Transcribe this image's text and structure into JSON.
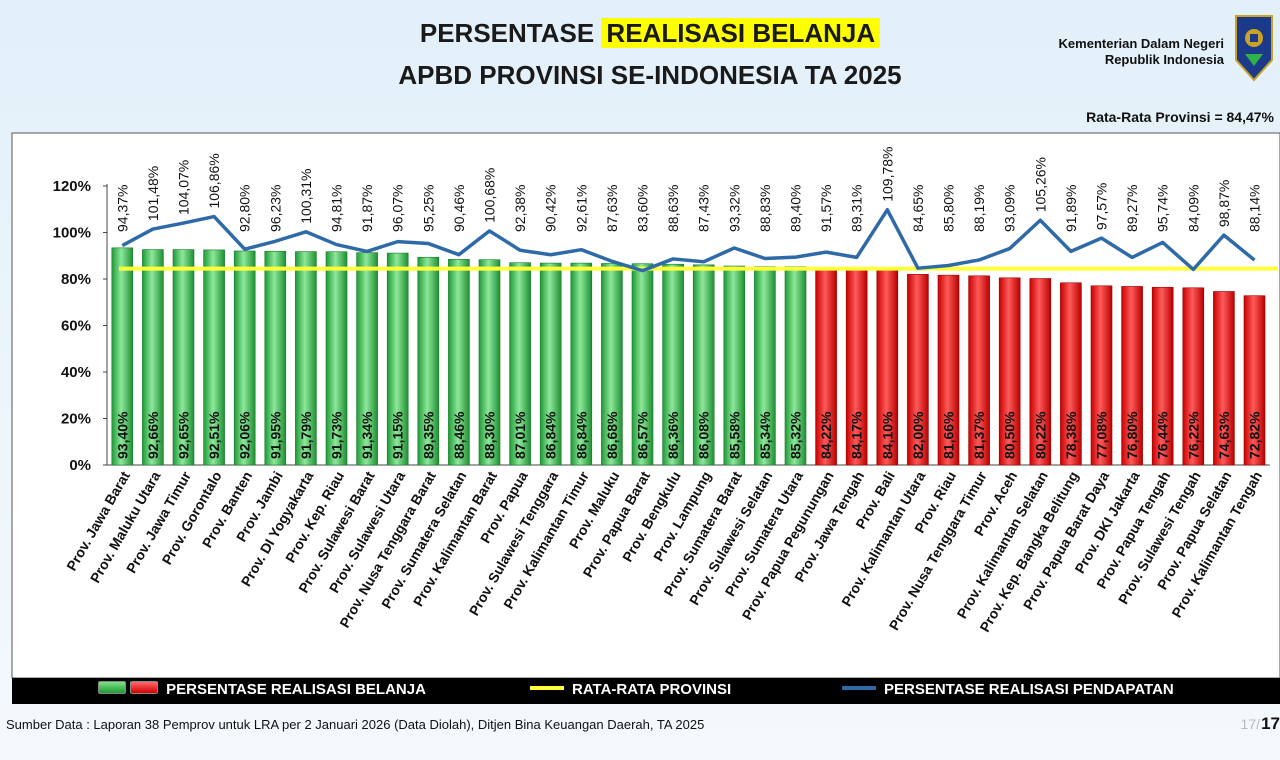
{
  "header": {
    "title_pre": "PERSENTASE ",
    "title_highlight": "REALISASI BELANJA",
    "title_line2": "APBD PROVINSI SE-INDONESIA TA 2025",
    "ministry_line1": "Kementerian Dalam Negeri",
    "ministry_line2": "Republik Indonesia",
    "average_text": "Rata-Rata Provinsi = 84,47%"
  },
  "legend": {
    "belanja": "PERSENTASE REALISASI BELANJA",
    "rata": "RATA-RATA PROVINSI",
    "pendapatan": "PERSENTASE REALISASI PENDAPATAN"
  },
  "footer": {
    "source": "Sumber Data : Laporan 38 Pemprov untuk LRA per 2 Januari 2026 (Data Diolah), Ditjen Bina Keuangan Daerah, TA 2025",
    "page_number": "17",
    "page_ghost": "17/"
  },
  "colors": {
    "above_average": "#2fb347",
    "below_average": "#e60000",
    "average_line": "#ffff3a",
    "pendapatan_line": "#2e6aa8"
  },
  "chart_data": {
    "type": "bar",
    "ylim": [
      0,
      120
    ],
    "yticks": [
      "0%",
      "20%",
      "40%",
      "60%",
      "80%",
      "100%",
      "120%"
    ],
    "average": 84.47,
    "categories": [
      "Prov. Jawa Barat",
      "Prov. Maluku Utara",
      "Prov. Jawa Timur",
      "Prov. Gorontalo",
      "Prov. Banten",
      "Prov. Jambi",
      "Prov. DI Yogyakarta",
      "Prov. Kep. Riau",
      "Prov. Sulawesi Barat",
      "Prov. Sulawesi Utara",
      "Prov. Nusa Tenggara Barat",
      "Prov. Sumatera Selatan",
      "Prov. Kalimantan Barat",
      "Prov. Papua",
      "Prov. Sulawesi Tenggara",
      "Prov. Kalimantan Timur",
      "Prov. Maluku",
      "Prov. Papua Barat",
      "Prov. Bengkulu",
      "Prov. Lampung",
      "Prov. Sumatera Barat",
      "Prov. Sulawesi Selatan",
      "Prov. Sumatera Utara",
      "Prov. Papua Pegunungan",
      "Prov. Jawa Tengah",
      "Prov. Bali",
      "Prov. Kalimantan Utara",
      "Prov. Riau",
      "Prov. Nusa Tenggara Timur",
      "Prov. Aceh",
      "Prov. Kalimantan Selatan",
      "Prov. Kep. Bangka Belitung",
      "Prov. Papua Barat Daya",
      "Prov. DKI Jakarta",
      "Prov. Papua Tengah",
      "Prov. Sulawesi Tengah",
      "Prov. Papua Selatan",
      "Prov. Kalimantan Tengah"
    ],
    "series": [
      {
        "name": "PERSENTASE REALISASI BELANJA",
        "values": [
          93.4,
          92.66,
          92.65,
          92.51,
          92.06,
          91.95,
          91.79,
          91.73,
          91.34,
          91.15,
          89.35,
          88.46,
          88.3,
          87.01,
          86.84,
          86.84,
          86.68,
          86.57,
          86.36,
          86.08,
          85.58,
          85.34,
          85.32,
          84.22,
          84.17,
          84.1,
          82.0,
          81.66,
          81.37,
          80.5,
          80.22,
          78.38,
          77.08,
          76.8,
          76.44,
          76.22,
          74.63,
          72.82
        ],
        "labels": [
          "93,40%",
          "92,66%",
          "92,65%",
          "92,51%",
          "92,06%",
          "91,95%",
          "91,79%",
          "91,73%",
          "91,34%",
          "91,15%",
          "89,35%",
          "88,46%",
          "88,30%",
          "87,01%",
          "86,84%",
          "86,84%",
          "86,68%",
          "86,57%",
          "86,36%",
          "86,08%",
          "85,58%",
          "85,34%",
          "85,32%",
          "84,22%",
          "84,17%",
          "84,10%",
          "82,00%",
          "81,66%",
          "81,37%",
          "80,50%",
          "80,22%",
          "78,38%",
          "77,08%",
          "76,80%",
          "76,44%",
          "76,22%",
          "74,63%",
          "72,82%"
        ]
      },
      {
        "name": "PERSENTASE REALISASI PENDAPATAN",
        "values": [
          94.37,
          101.48,
          104.07,
          106.86,
          92.8,
          96.23,
          100.31,
          94.81,
          91.87,
          96.07,
          95.25,
          90.46,
          100.68,
          92.38,
          90.42,
          92.61,
          87.63,
          83.6,
          88.63,
          87.43,
          93.32,
          88.83,
          89.4,
          91.57,
          89.31,
          109.78,
          84.65,
          85.8,
          88.19,
          93.09,
          105.26,
          91.89,
          97.57,
          89.27,
          95.74,
          84.09,
          98.87,
          88.14
        ],
        "labels": [
          "94,37%",
          "101,48%",
          "104,07%",
          "106,86%",
          "92,80%",
          "96,23%",
          "100,31%",
          "94,81%",
          "91,87%",
          "96,07%",
          "95,25%",
          "90,46%",
          "100,68%",
          "92,38%",
          "90,42%",
          "92,61%",
          "87,63%",
          "83,60%",
          "88,63%",
          "87,43%",
          "93,32%",
          "88,83%",
          "89,40%",
          "91,57%",
          "89,31%",
          "109,78%",
          "84,65%",
          "85,80%",
          "88,19%",
          "93,09%",
          "105,26%",
          "91,89%",
          "97,57%",
          "89,27%",
          "95,74%",
          "84,09%",
          "98,87%",
          "88,14%"
        ]
      }
    ]
  }
}
